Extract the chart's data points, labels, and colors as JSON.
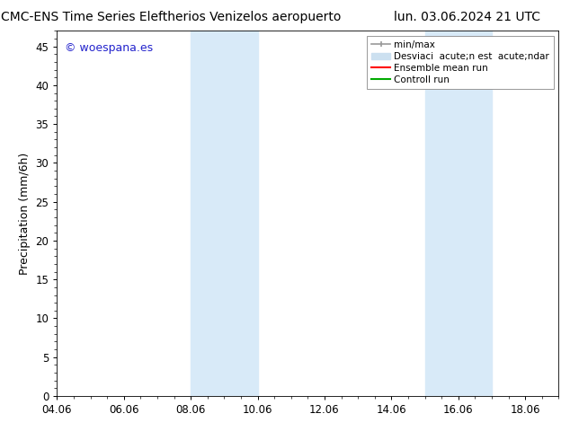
{
  "title_left": "CMC-ENS Time Series Eleftherios Venizelos aeropuerto",
  "title_right": "lun. 03.06.2024 21 UTC",
  "ylabel": "Precipitation (mm/6h)",
  "xlabel": "",
  "xlim": [
    4.06,
    19.06
  ],
  "ylim": [
    0,
    47
  ],
  "yticks": [
    0,
    5,
    10,
    15,
    20,
    25,
    30,
    35,
    40,
    45
  ],
  "xtick_labels": [
    "04.06",
    "06.06",
    "08.06",
    "10.06",
    "12.06",
    "14.06",
    "16.06",
    "18.06"
  ],
  "xtick_positions": [
    4.06,
    6.06,
    8.06,
    10.06,
    12.06,
    14.06,
    16.06,
    18.06
  ],
  "bg_color": "#ffffff",
  "plot_bg_color": "#ffffff",
  "shaded_regions": [
    {
      "xmin": 8.06,
      "xmax": 10.06
    },
    {
      "xmin": 15.06,
      "xmax": 17.06
    }
  ],
  "shaded_color": "#d8eaf8",
  "watermark_text": "© woespana.es",
  "watermark_color": "#2222cc",
  "legend_label_min_max": "min/max",
  "legend_label_desv": "Desviaci  acute;n est  acute;ndar",
  "legend_label_ensemble": "Ensemble mean run",
  "legend_label_control": "Controll run",
  "legend_color_min_max": "#999999",
  "legend_color_desv": "#cce0f0",
  "legend_color_ensemble": "#ff0000",
  "legend_color_control": "#00aa00",
  "title_fontsize": 10,
  "tick_fontsize": 8.5,
  "ylabel_fontsize": 9,
  "watermark_fontsize": 9,
  "legend_fontsize": 7.5
}
